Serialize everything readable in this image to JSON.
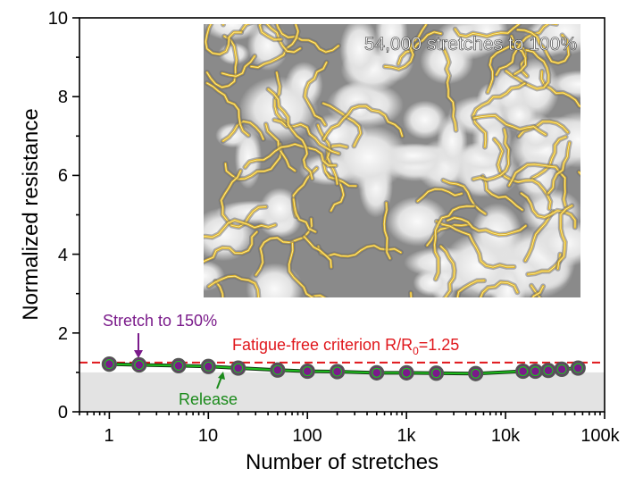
{
  "chart_data": {
    "type": "scatter",
    "xlabel": "Number of stretches",
    "ylabel": "Normalized resistance",
    "xscale": "log",
    "xlim": [
      0.5,
      100000
    ],
    "ylim": [
      0,
      10
    ],
    "xticks": [
      1,
      10,
      100,
      1000,
      10000,
      100000
    ],
    "xtick_labels": [
      "1",
      "10",
      "100",
      "1k",
      "10k",
      "100k"
    ],
    "yticks": [
      0,
      2,
      4,
      6,
      8,
      10
    ],
    "ytick_labels": [
      "0",
      "2",
      "4",
      "6",
      "8",
      "10"
    ],
    "grid": false,
    "series": [
      {
        "name": "Stretch to 150%",
        "color": "#7a1a8a",
        "x": [
          1,
          2,
          5,
          10,
          20,
          50,
          100,
          200,
          500,
          1000,
          2000,
          5000,
          15000,
          20000,
          27000,
          37000,
          54000
        ],
        "y": [
          1.21,
          1.19,
          1.17,
          1.15,
          1.11,
          1.06,
          1.03,
          1.02,
          0.99,
          0.99,
          0.98,
          0.97,
          1.03,
          1.03,
          1.05,
          1.08,
          1.11
        ]
      },
      {
        "name": "Release",
        "color": "#1fbf1f",
        "x": [
          1,
          2,
          5,
          10,
          20,
          50,
          100,
          200,
          500,
          1000,
          2000,
          5000,
          15000,
          20000,
          27000,
          37000,
          54000
        ],
        "y": [
          1.21,
          1.19,
          1.17,
          1.15,
          1.11,
          1.06,
          1.03,
          1.02,
          0.99,
          0.99,
          0.98,
          0.97,
          1.03,
          1.03,
          1.05,
          1.08,
          1.11
        ]
      }
    ],
    "reference_line": {
      "y": 1.25,
      "color": "#e0161b",
      "style": "dashed"
    },
    "shaded_band": {
      "y": [
        0,
        1
      ],
      "color": "#e3e3e3"
    },
    "annotations": {
      "stretch": "Stretch to 150%",
      "release": "Release",
      "criterion_prefix": "Fatigue-free criterion R/R",
      "criterion_sub": "0",
      "criterion_suffix": "=1.25",
      "inset_title": "54,000 stretches to 100%"
    },
    "colors": {
      "stretch": "#7a1a8a",
      "release": "#1a8a1a",
      "criterion": "#e0161b",
      "crack": "#e0b020"
    }
  }
}
